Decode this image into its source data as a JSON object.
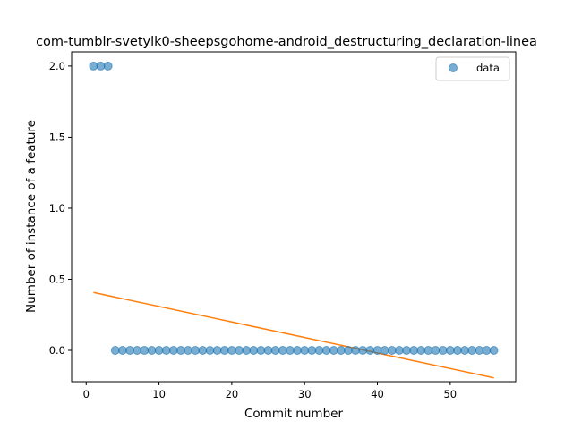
{
  "chart_data": {
    "type": "scatter",
    "title": "com-tumblr-svetylk0-sheepsgohome-android_destructuring_declaration-linea",
    "xlabel": "Commit number",
    "ylabel": "Number of instance of a feature",
    "xlim": [
      -2,
      59
    ],
    "ylim": [
      -0.22,
      2.1
    ],
    "xticks": [
      0,
      10,
      20,
      30,
      40,
      50
    ],
    "yticks": [
      0.0,
      0.5,
      1.0,
      1.5,
      2.0
    ],
    "xtick_labels": [
      "0",
      "10",
      "20",
      "30",
      "40",
      "50"
    ],
    "ytick_labels": [
      "0.0",
      "0.5",
      "1.0",
      "1.5",
      "2.0"
    ],
    "legend": {
      "position": "top-right",
      "entries": [
        "data"
      ]
    },
    "grid": false,
    "series": [
      {
        "name": "data",
        "kind": "scatter",
        "color": "#1f77b4",
        "x": [
          1,
          2,
          3,
          4,
          5,
          6,
          7,
          8,
          9,
          10,
          11,
          12,
          13,
          14,
          15,
          16,
          17,
          18,
          19,
          20,
          21,
          22,
          23,
          24,
          25,
          26,
          27,
          28,
          29,
          30,
          31,
          32,
          33,
          34,
          35,
          36,
          37,
          38,
          39,
          40,
          41,
          42,
          43,
          44,
          45,
          46,
          47,
          48,
          49,
          50,
          51,
          52,
          53,
          54,
          55,
          56
        ],
        "y": [
          2,
          2,
          2,
          0,
          0,
          0,
          0,
          0,
          0,
          0,
          0,
          0,
          0,
          0,
          0,
          0,
          0,
          0,
          0,
          0,
          0,
          0,
          0,
          0,
          0,
          0,
          0,
          0,
          0,
          0,
          0,
          0,
          0,
          0,
          0,
          0,
          0,
          0,
          0,
          0,
          0,
          0,
          0,
          0,
          0,
          0,
          0,
          0,
          0,
          0,
          0,
          0,
          0,
          0,
          0,
          0
        ]
      },
      {
        "kind": "line",
        "color": "#ff7f0e",
        "x": [
          1,
          56
        ],
        "y": [
          0.407,
          -0.193
        ]
      }
    ]
  }
}
